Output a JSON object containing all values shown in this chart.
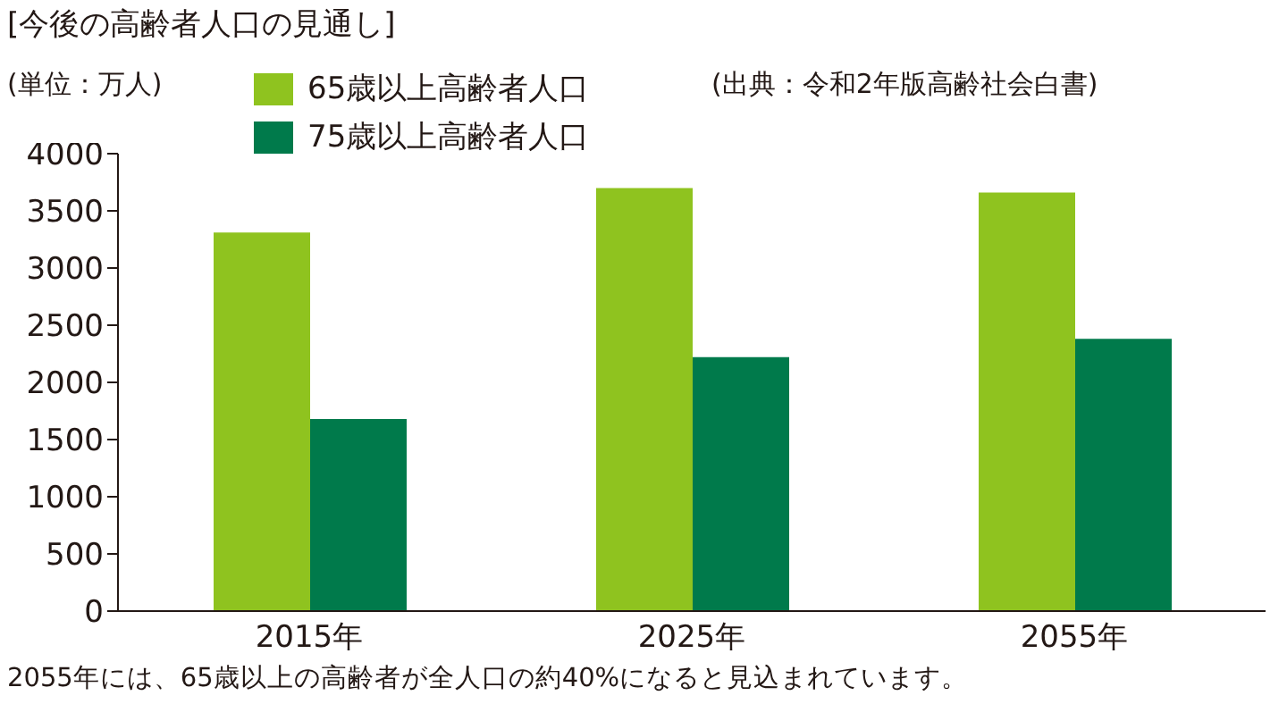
{
  "chart_data": {
    "type": "bar",
    "title": "[今後の高齢者人口の見通し]",
    "annotations": [
      "(単位：万人)",
      "(出典：令和2年版高齢社会白書)",
      "2055年には、65歳以上の高齢者が全人口の約40%になると見込まれています。"
    ],
    "categories": [
      "2015年",
      "2025年",
      "2055年"
    ],
    "series": [
      {
        "name": "65歳以上高齢者人口",
        "color": "#8fc31f",
        "values": [
          3310,
          3700,
          3660
        ]
      },
      {
        "name": "75歳以上高齢者人口",
        "color": "#007a4b",
        "values": [
          1680,
          2220,
          2380
        ]
      }
    ],
    "ylim": [
      0,
      4000
    ],
    "yticks": [
      0,
      500,
      1000,
      1500,
      2000,
      2500,
      3000,
      3500,
      4000
    ],
    "grid": false,
    "legend": "top"
  }
}
